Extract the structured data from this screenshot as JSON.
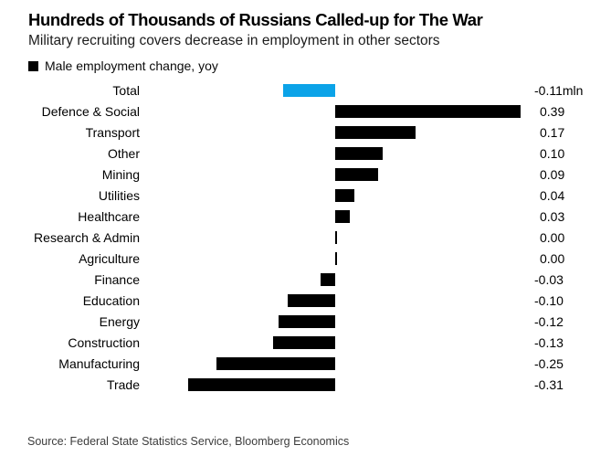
{
  "header": {
    "title": "Hundreds of Thousands of Russians Called-up for The War",
    "subtitle": "Military recruiting covers decrease in employment in other sectors",
    "legend_label": "Male employment change, yoy"
  },
  "chart_data": {
    "type": "bar",
    "orientation": "horizontal",
    "title": "Hundreds of Thousands of Russians Called-up for The War",
    "subtitle": "Military recruiting covers decrease in employment in other sectors",
    "series_name": "Male employment change, yoy",
    "unit": "mln",
    "categories": [
      "Total",
      "Defence & Social",
      "Transport",
      "Other",
      "Mining",
      "Utilities",
      "Healthcare",
      "Research & Admin",
      "Agriculture",
      "Finance",
      "Education",
      "Energy",
      "Construction",
      "Manufacturing",
      "Trade"
    ],
    "values": [
      -0.11,
      0.39,
      0.17,
      0.1,
      0.09,
      0.04,
      0.03,
      0.0,
      0.0,
      -0.03,
      -0.1,
      -0.12,
      -0.13,
      -0.25,
      -0.31
    ],
    "value_labels": [
      "-0.11mln",
      "0.39",
      "0.17",
      "0.10",
      "0.09",
      "0.04",
      "0.03",
      "0.00",
      "0.00",
      "-0.03",
      "-0.10",
      "-0.12",
      "-0.13",
      "-0.25",
      "-0.31"
    ],
    "highlight_index": 0,
    "highlight_category": "Total",
    "xlim": [
      -0.41,
      0.41
    ],
    "grid": false,
    "axis_lines": false,
    "legend_position": "top-left",
    "value_label_position": "right"
  },
  "colors": {
    "bar": "#000000",
    "accent": "#0ba3e8",
    "legend_swatch": "#000000",
    "title_text": "#000000",
    "subtitle_text": "#1c1c1c",
    "source_text": "#3c3c3c",
    "background": "#ffffff"
  },
  "footer": {
    "source": "Source: Federal State Statistics Service, Bloomberg Economics"
  }
}
